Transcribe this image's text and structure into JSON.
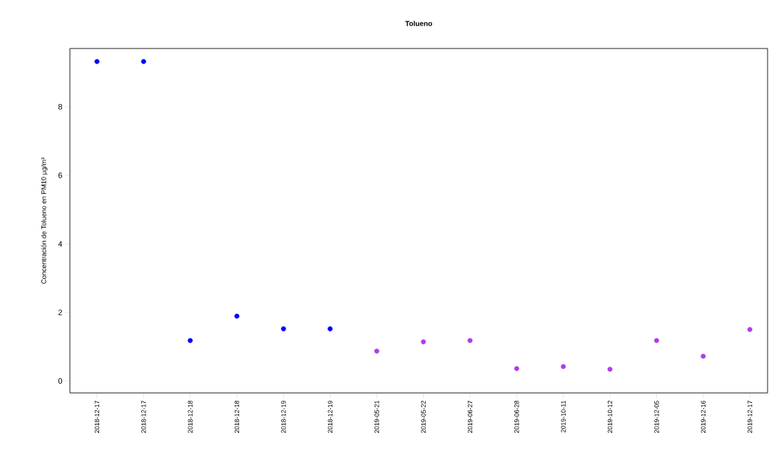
{
  "chart_data": {
    "type": "scatter",
    "title": "Tolueno",
    "ylabel": "Concentración de Tolueno en PM10 µg/m³",
    "categories": [
      "2018-12-17",
      "2018-12-17",
      "2018-12-18",
      "2018-12-18",
      "2018-12-19",
      "2018-12-19",
      "2019-05-21",
      "2019-05-22",
      "2019-06-27",
      "2019-06-28",
      "2019-10-11",
      "2019-10-12",
      "2019-12-05",
      "2019-12-16",
      "2019-12-17"
    ],
    "series": [
      {
        "color": "#0000ff",
        "values": [
          9.32,
          9.32,
          1.18,
          1.89,
          1.52,
          1.52,
          null,
          null,
          null,
          null,
          null,
          null,
          null,
          null,
          null
        ]
      },
      {
        "color": "#b03ceb",
        "values": [
          null,
          null,
          null,
          null,
          null,
          null,
          0.87,
          1.14,
          1.18,
          0.36,
          0.42,
          0.34,
          1.18,
          0.72,
          1.5
        ]
      }
    ],
    "ylim": [
      -0.35,
      9.7
    ],
    "yticks": [
      0,
      2,
      4,
      6,
      8
    ]
  }
}
